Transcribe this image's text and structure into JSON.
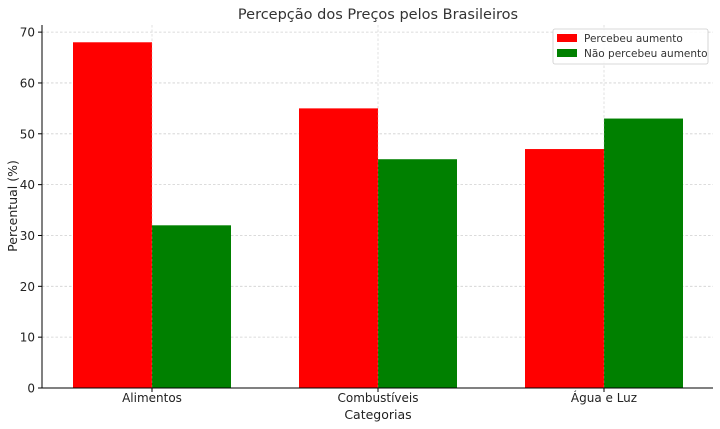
{
  "chart_data": {
    "type": "bar",
    "title": "Percepção dos Preços pelos Brasileiros",
    "xlabel": "Categorias",
    "ylabel": "Percentual (%)",
    "categories": [
      "Alimentos",
      "Combustíveis",
      "Água e Luz"
    ],
    "series": [
      {
        "name": "Percebeu aumento",
        "values": [
          68,
          55,
          47
        ],
        "color": "#ff0000"
      },
      {
        "name": "Não percebeu aumento",
        "values": [
          32,
          45,
          53
        ],
        "color": "#008000"
      }
    ],
    "ylim": [
      0,
      71.4
    ],
    "yticks": [
      0,
      10,
      20,
      30,
      40,
      50,
      60,
      70
    ],
    "grid": true,
    "legend_position": "top-right"
  }
}
